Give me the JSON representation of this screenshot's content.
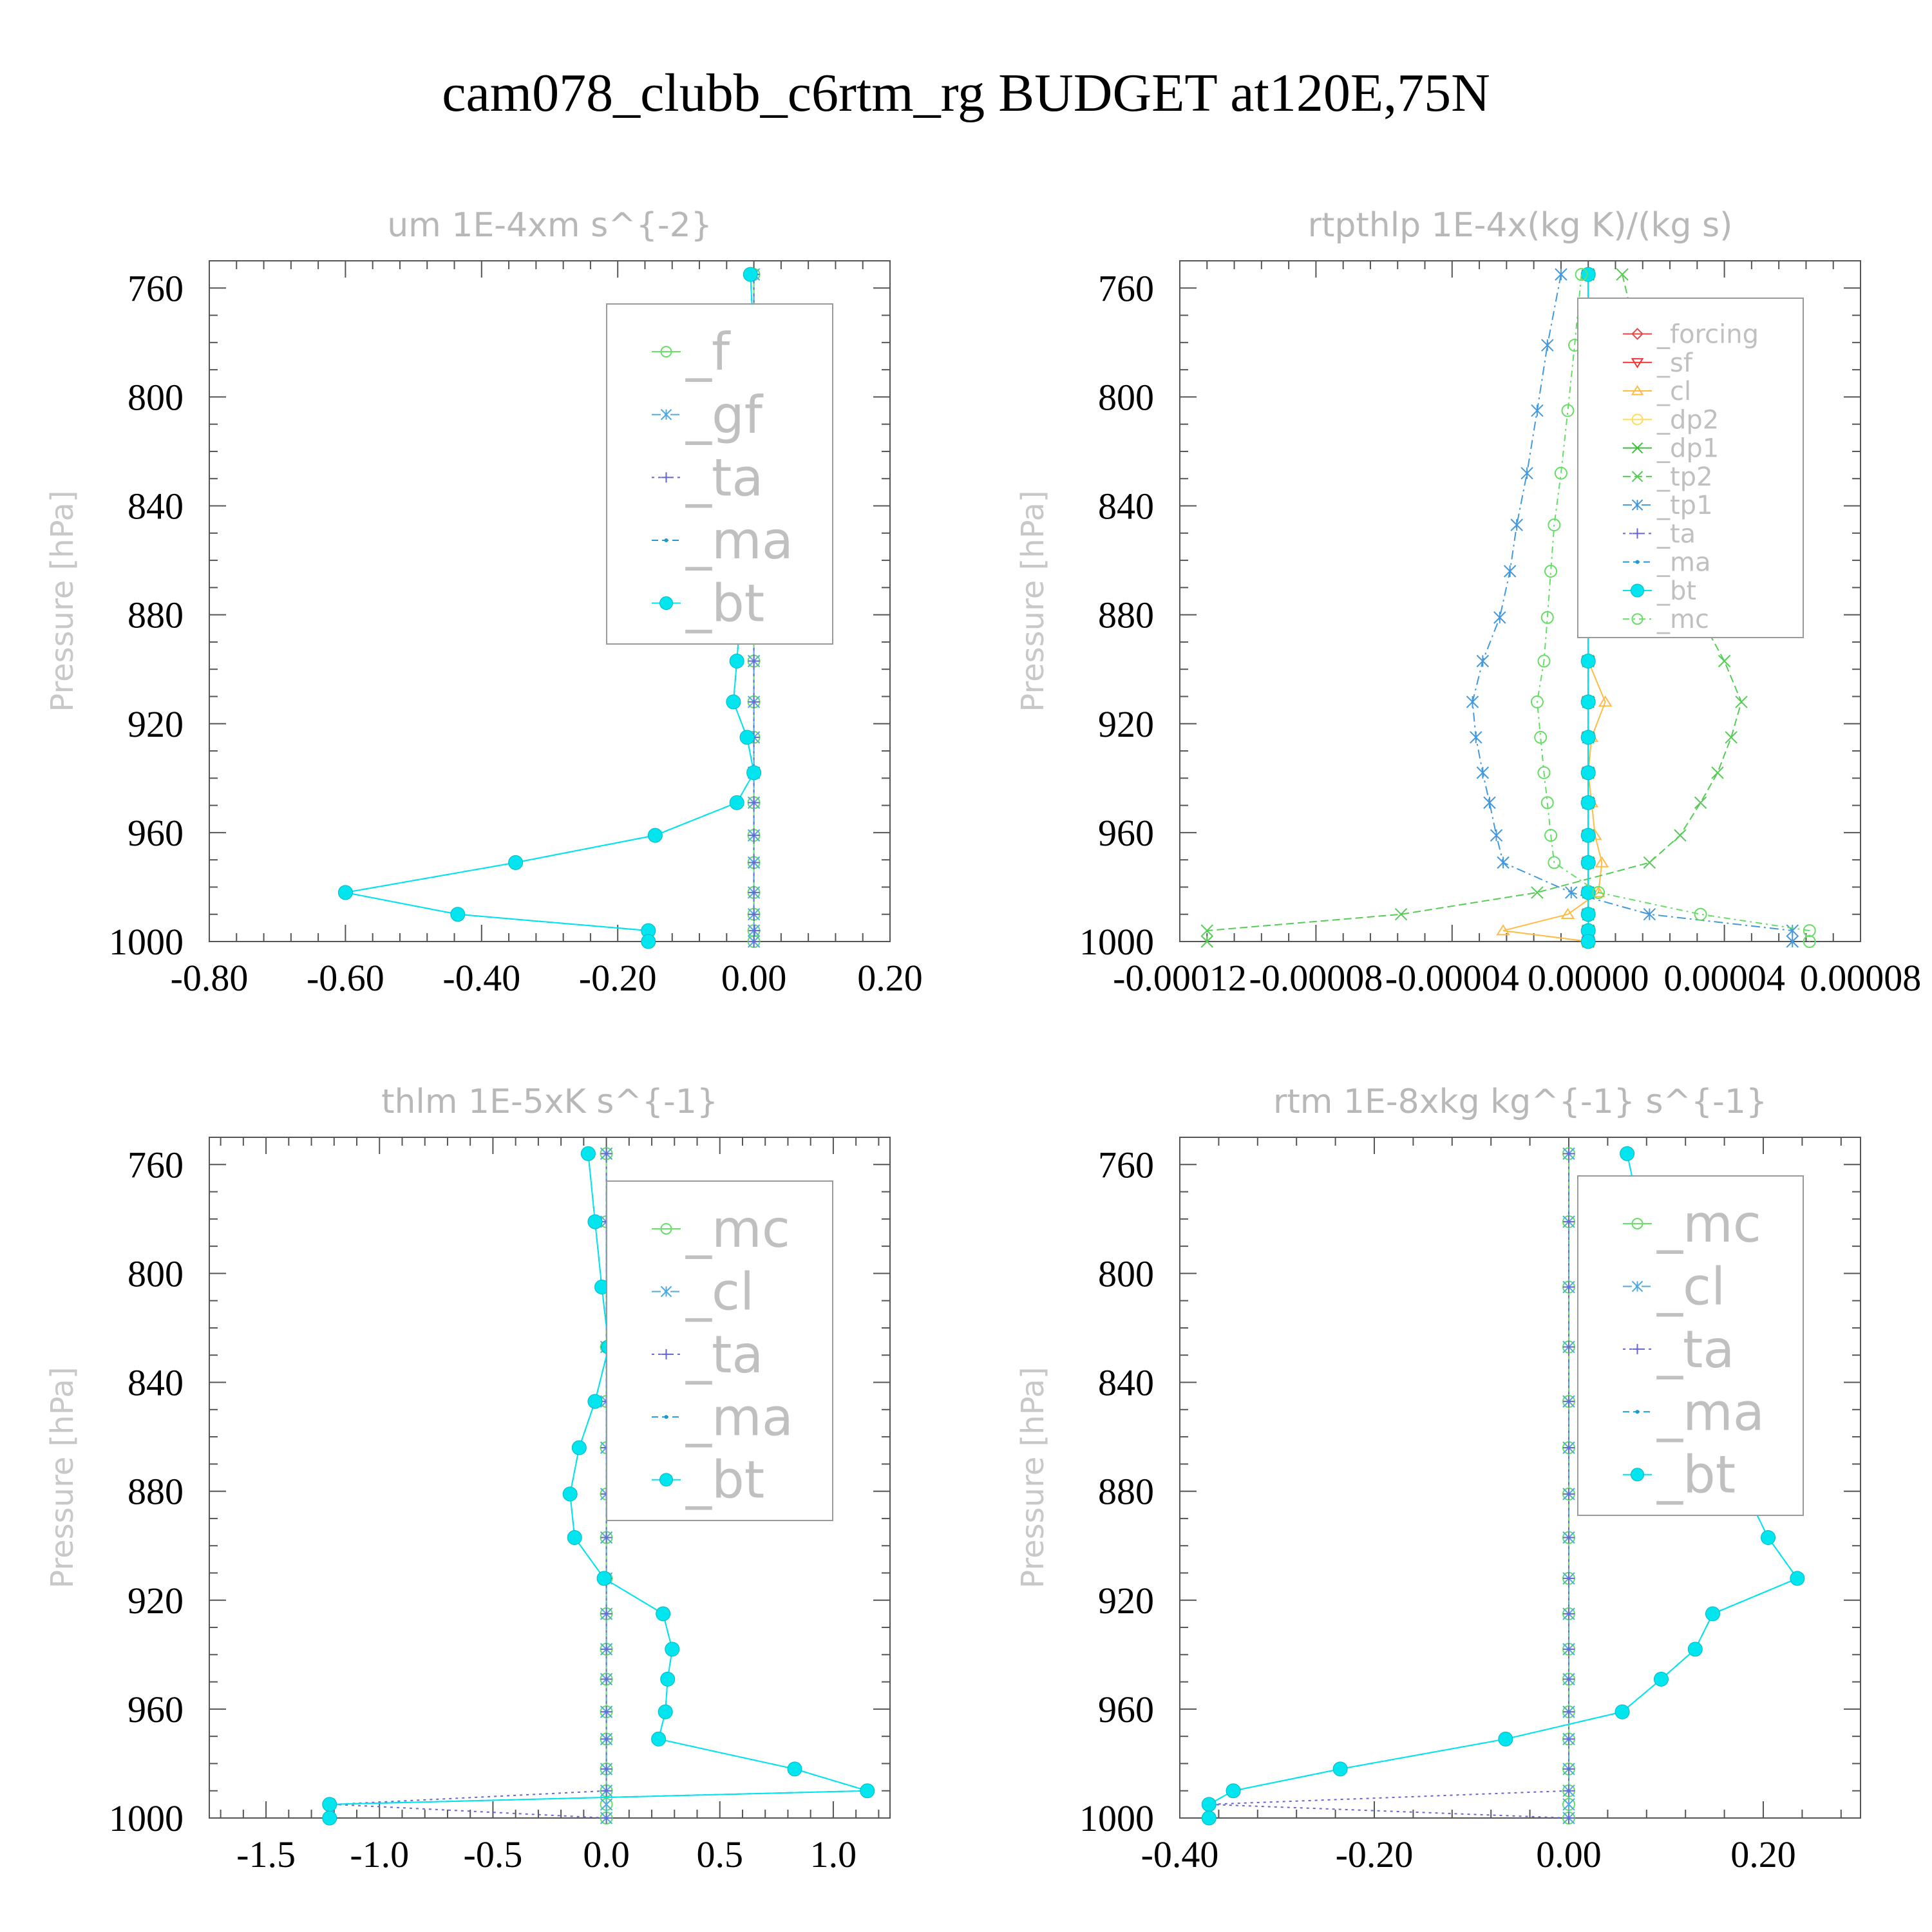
{
  "figure_title": "cam078_clubb_c6rtm_rg  BUDGET at120E,75N",
  "chart_data": [
    {
      "type": "line",
      "title": "um   1E-4xm s^{-2}",
      "ylabel": "Pressure [hPa]",
      "ylim": [
        1000,
        750
      ],
      "xlim": [
        -0.8,
        0.2
      ],
      "xticks": [
        -0.8,
        -0.6,
        -0.4,
        -0.2,
        0.0,
        0.2
      ],
      "xtick_labels": [
        "-0.80",
        "-0.60",
        "-0.40",
        "-0.20",
        "0.00",
        "0.20"
      ],
      "yticks": [
        760,
        800,
        840,
        880,
        920,
        960,
        1000
      ],
      "legend_fontsize": 80,
      "grid": false,
      "legend_position": "top-right",
      "pressure": [
        755,
        781,
        805,
        828,
        847,
        864,
        881,
        897,
        912,
        925,
        938,
        949,
        961,
        971,
        982,
        990,
        996,
        1000
      ],
      "series": [
        {
          "name": "_f",
          "color": "#66dd66",
          "marker": "circle-open",
          "dash": "",
          "values": [
            0,
            0,
            0,
            0,
            0,
            0,
            0,
            0,
            0,
            0,
            0,
            0,
            0,
            0,
            0,
            0,
            0,
            0
          ]
        },
        {
          "name": "_gf",
          "color": "#55aadd",
          "marker": "asterisk",
          "dash": "14 6 3 6",
          "values": [
            0,
            0,
            0,
            0,
            0,
            0,
            0,
            0,
            0,
            0,
            0,
            0,
            0,
            0,
            0,
            0,
            0,
            0
          ]
        },
        {
          "name": "_ta",
          "color": "#6666cc",
          "marker": "plus",
          "dash": "4 6",
          "values": [
            0,
            0,
            0,
            0,
            0,
            0,
            0,
            0,
            0,
            0,
            0,
            0,
            0,
            0,
            0,
            0,
            0.001,
            0
          ]
        },
        {
          "name": "_ma",
          "color": "#2299cc",
          "marker": "dot",
          "dash": "10 6",
          "values": [
            -0.005,
            0.0,
            -0.005,
            -0.015,
            -0.015,
            -0.015,
            -0.02,
            -0.025,
            -0.03,
            -0.01,
            0.0,
            -0.025,
            -0.145,
            -0.35,
            -0.6,
            -0.435,
            -0.155,
            -0.155
          ]
        },
        {
          "name": "_bt",
          "color": "#00e5ee",
          "marker": "filled",
          "dash": "",
          "values": [
            -0.005,
            0.0,
            -0.005,
            -0.015,
            -0.015,
            -0.015,
            -0.02,
            -0.025,
            -0.03,
            -0.01,
            0.0,
            -0.025,
            -0.145,
            -0.35,
            -0.6,
            -0.435,
            -0.155,
            -0.155
          ]
        }
      ]
    },
    {
      "type": "line",
      "title": "rtpthlp   1E-4x(kg K)/(kg s)",
      "ylabel": "Pressure [hPa]",
      "ylim": [
        1000,
        750
      ],
      "xlim": [
        -0.00012,
        8e-05
      ],
      "xticks": [
        -0.00012,
        -8e-05,
        -4e-05,
        0.0,
        4e-05,
        8e-05
      ],
      "xtick_labels": [
        "-0.00012",
        "-0.00008",
        "-0.00004",
        "0.00000",
        "0.00004",
        "0.00008"
      ],
      "yticks": [
        760,
        800,
        840,
        880,
        920,
        960,
        1000
      ],
      "legend_fontsize": 40,
      "grid": false,
      "legend_position": "top-right",
      "pressure": [
        755,
        781,
        805,
        828,
        847,
        864,
        881,
        897,
        912,
        925,
        938,
        949,
        961,
        971,
        982,
        990,
        996,
        1000
      ],
      "series": [
        {
          "name": "_forcing",
          "color": "#ee4444",
          "marker": "diamond-open",
          "dash": "",
          "values": [
            0,
            0,
            0,
            0,
            0,
            0,
            0,
            0,
            0,
            0,
            0,
            0,
            0,
            0,
            0,
            0,
            0,
            0
          ]
        },
        {
          "name": "_sf",
          "color": "#ee3333",
          "marker": "triangle-down",
          "dash": "",
          "values": [
            0,
            0,
            0,
            0,
            0,
            0,
            0,
            0,
            0,
            0,
            0,
            0,
            0,
            0,
            0,
            0,
            0,
            0
          ]
        },
        {
          "name": "_cl",
          "color": "#ffbb44",
          "marker": "triangle-up",
          "dash": "",
          "values": [
            0,
            0,
            0,
            0,
            0,
            0,
            0,
            0,
            5e-06,
            1e-06,
            0,
            1e-06,
            2e-06,
            4e-06,
            3e-06,
            -6e-06,
            -2.5e-05,
            0
          ]
        },
        {
          "name": "_dp2",
          "color": "#ffdd55",
          "marker": "circle-open",
          "dash": "",
          "values": [
            0,
            0,
            0,
            0,
            0,
            0,
            0,
            0,
            0,
            0,
            0,
            0,
            0,
            0,
            0,
            0,
            0,
            0
          ]
        },
        {
          "name": "_dp1",
          "color": "#44bb44",
          "marker": "x",
          "dash": "",
          "values": [
            0,
            0,
            0,
            0,
            0,
            0,
            0,
            0,
            0,
            0,
            0,
            0,
            0,
            0,
            0,
            0,
            0,
            0
          ]
        },
        {
          "name": "_tp2",
          "color": "#55cc55",
          "marker": "x",
          "dash": "12 6",
          "values": [
            1e-05,
            1.5e-05,
            1.8e-05,
            2.2e-05,
            2.5e-05,
            2.8e-05,
            3.3e-05,
            4e-05,
            4.5e-05,
            4.2e-05,
            3.8e-05,
            3.3e-05,
            2.7e-05,
            1.8e-05,
            -1.5e-05,
            -5.5e-05,
            -0.000112,
            -0.000112
          ]
        },
        {
          "name": "_tp1",
          "color": "#4499dd",
          "marker": "asterisk",
          "dash": "14 6 3 6",
          "values": [
            -8e-06,
            -1.2e-05,
            -1.5e-05,
            -1.8e-05,
            -2.1e-05,
            -2.3e-05,
            -2.6e-05,
            -3.1e-05,
            -3.4e-05,
            -3.3e-05,
            -3.1e-05,
            -2.9e-05,
            -2.7e-05,
            -2.5e-05,
            -5e-06,
            1.8e-05,
            6e-05,
            6e-05
          ]
        },
        {
          "name": "_ta",
          "color": "#6666cc",
          "marker": "plus",
          "dash": "4 6",
          "values": [
            0,
            0,
            0,
            0,
            0,
            0,
            0,
            0,
            0,
            0,
            0,
            0,
            0,
            0,
            0,
            0,
            0,
            0
          ]
        },
        {
          "name": "_ma",
          "color": "#2299cc",
          "marker": "dot",
          "dash": "10 6",
          "values": [
            0,
            0,
            0,
            0,
            0,
            0,
            0,
            0,
            0,
            0,
            0,
            0,
            0,
            0,
            0,
            0,
            0,
            0
          ]
        },
        {
          "name": "_bt",
          "color": "#00e5ee",
          "marker": "filled",
          "dash": "",
          "values": [
            0,
            0,
            0,
            0,
            0,
            0,
            0,
            0,
            0,
            0,
            0,
            0,
            0,
            0,
            0,
            0,
            0,
            0
          ]
        },
        {
          "name": "_mc",
          "color": "#66dd66",
          "marker": "circle-open",
          "dash": "10 6 3 6",
          "values": [
            -2e-06,
            -4e-06,
            -6e-06,
            -8e-06,
            -1e-05,
            -1.1e-05,
            -1.2e-05,
            -1.3e-05,
            -1.5e-05,
            -1.4e-05,
            -1.3e-05,
            -1.2e-05,
            -1.1e-05,
            -1e-05,
            3e-06,
            3.3e-05,
            6.5e-05,
            6.5e-05
          ]
        }
      ]
    },
    {
      "type": "line",
      "title": "thlm   1E-5xK s^{-1}",
      "ylabel": "Pressure [hPa]",
      "ylim": [
        1000,
        750
      ],
      "xlim": [
        -1.75,
        1.25
      ],
      "xticks": [
        -1.5,
        -1.0,
        -0.5,
        0.0,
        0.5,
        1.0
      ],
      "xtick_labels": [
        "-1.5",
        "-1.0",
        "-0.5",
        "0.0",
        "0.5",
        "1.0"
      ],
      "yticks": [
        760,
        800,
        840,
        880,
        920,
        960,
        1000
      ],
      "legend_fontsize": 80,
      "grid": false,
      "legend_position": "top-right",
      "pressure": [
        756,
        781,
        805,
        827,
        847,
        864,
        881,
        897,
        912,
        925,
        938,
        949,
        961,
        971,
        982,
        990,
        995,
        1000
      ],
      "series": [
        {
          "name": "_mc",
          "color": "#66dd66",
          "marker": "circle-open",
          "dash": "",
          "values": [
            0,
            0,
            0,
            0,
            0,
            0,
            0,
            0,
            0,
            0,
            0,
            0,
            0,
            0,
            0,
            0,
            0,
            0
          ]
        },
        {
          "name": "_cl",
          "color": "#55aadd",
          "marker": "asterisk",
          "dash": "14 6 3 6",
          "values": [
            0,
            0,
            0,
            0,
            0,
            0,
            0,
            0,
            0,
            0,
            0,
            0,
            0,
            0,
            0,
            0,
            0,
            0
          ]
        },
        {
          "name": "_ta",
          "color": "#6666cc",
          "marker": "plus",
          "dash": "4 6",
          "values": [
            0,
            0,
            0,
            0,
            0,
            0,
            0,
            0,
            0,
            0,
            0,
            0,
            0,
            0,
            0,
            0,
            -1.2,
            0
          ]
        },
        {
          "name": "_ma",
          "color": "#2299cc",
          "marker": "dot",
          "dash": "10 6",
          "values": [
            -0.08,
            -0.05,
            -0.02,
            0.01,
            -0.05,
            -0.12,
            -0.16,
            -0.14,
            -0.01,
            0.25,
            0.29,
            0.27,
            0.26,
            0.23,
            0.83,
            1.15,
            -1.22,
            -1.22
          ]
        },
        {
          "name": "_bt",
          "color": "#00e5ee",
          "marker": "filled",
          "dash": "",
          "values": [
            -0.08,
            -0.05,
            -0.02,
            0.01,
            -0.05,
            -0.12,
            -0.16,
            -0.14,
            -0.01,
            0.25,
            0.29,
            0.27,
            0.26,
            0.23,
            0.83,
            1.15,
            -1.22,
            -1.22
          ]
        }
      ]
    },
    {
      "type": "line",
      "title": "rtm   1E-8xkg kg^{-1} s^{-1}",
      "ylabel": "Pressure [hPa]",
      "ylim": [
        1000,
        750
      ],
      "xlim": [
        -0.4,
        0.3
      ],
      "xticks": [
        -0.4,
        -0.2,
        0.0,
        0.2
      ],
      "xtick_labels": [
        "-0.40",
        "-0.20",
        "0.00",
        "0.20"
      ],
      "yticks": [
        760,
        800,
        840,
        880,
        920,
        960,
        1000
      ],
      "legend_fontsize": 80,
      "grid": false,
      "legend_position": "top-right",
      "pressure": [
        756,
        781,
        805,
        827,
        847,
        864,
        881,
        897,
        912,
        925,
        938,
        949,
        961,
        971,
        982,
        990,
        995,
        1000
      ],
      "series": [
        {
          "name": "_mc",
          "color": "#66dd66",
          "marker": "circle-open",
          "dash": "",
          "values": [
            0,
            0,
            0,
            0,
            0,
            0,
            0,
            0,
            0,
            0,
            0,
            0,
            0,
            0,
            0,
            0,
            0,
            0
          ]
        },
        {
          "name": "_cl",
          "color": "#55aadd",
          "marker": "asterisk",
          "dash": "14 6 3 6",
          "values": [
            0,
            0,
            0,
            0,
            0,
            0,
            0,
            0,
            0,
            0,
            0,
            0,
            0,
            0,
            0,
            0,
            0,
            0
          ]
        },
        {
          "name": "_ta",
          "color": "#6666cc",
          "marker": "plus",
          "dash": "4 6",
          "values": [
            0,
            0,
            0,
            0,
            0,
            0,
            0,
            0,
            0,
            0,
            0,
            0,
            0,
            0,
            0,
            0,
            -0.37,
            0
          ]
        },
        {
          "name": "_ma",
          "color": "#2299cc",
          "marker": "dot",
          "dash": "10 6",
          "values": [
            0.06,
            0.075,
            0.06,
            0.062,
            0.13,
            0.158,
            0.183,
            0.205,
            0.235,
            0.148,
            0.13,
            0.095,
            0.055,
            -0.065,
            -0.235,
            -0.345,
            -0.37,
            -0.37
          ]
        },
        {
          "name": "_bt",
          "color": "#00e5ee",
          "marker": "filled",
          "dash": "",
          "values": [
            0.06,
            0.075,
            0.06,
            0.062,
            0.13,
            0.158,
            0.183,
            0.205,
            0.235,
            0.148,
            0.13,
            0.095,
            0.055,
            -0.065,
            -0.235,
            -0.345,
            -0.37,
            -0.37
          ]
        }
      ]
    }
  ]
}
